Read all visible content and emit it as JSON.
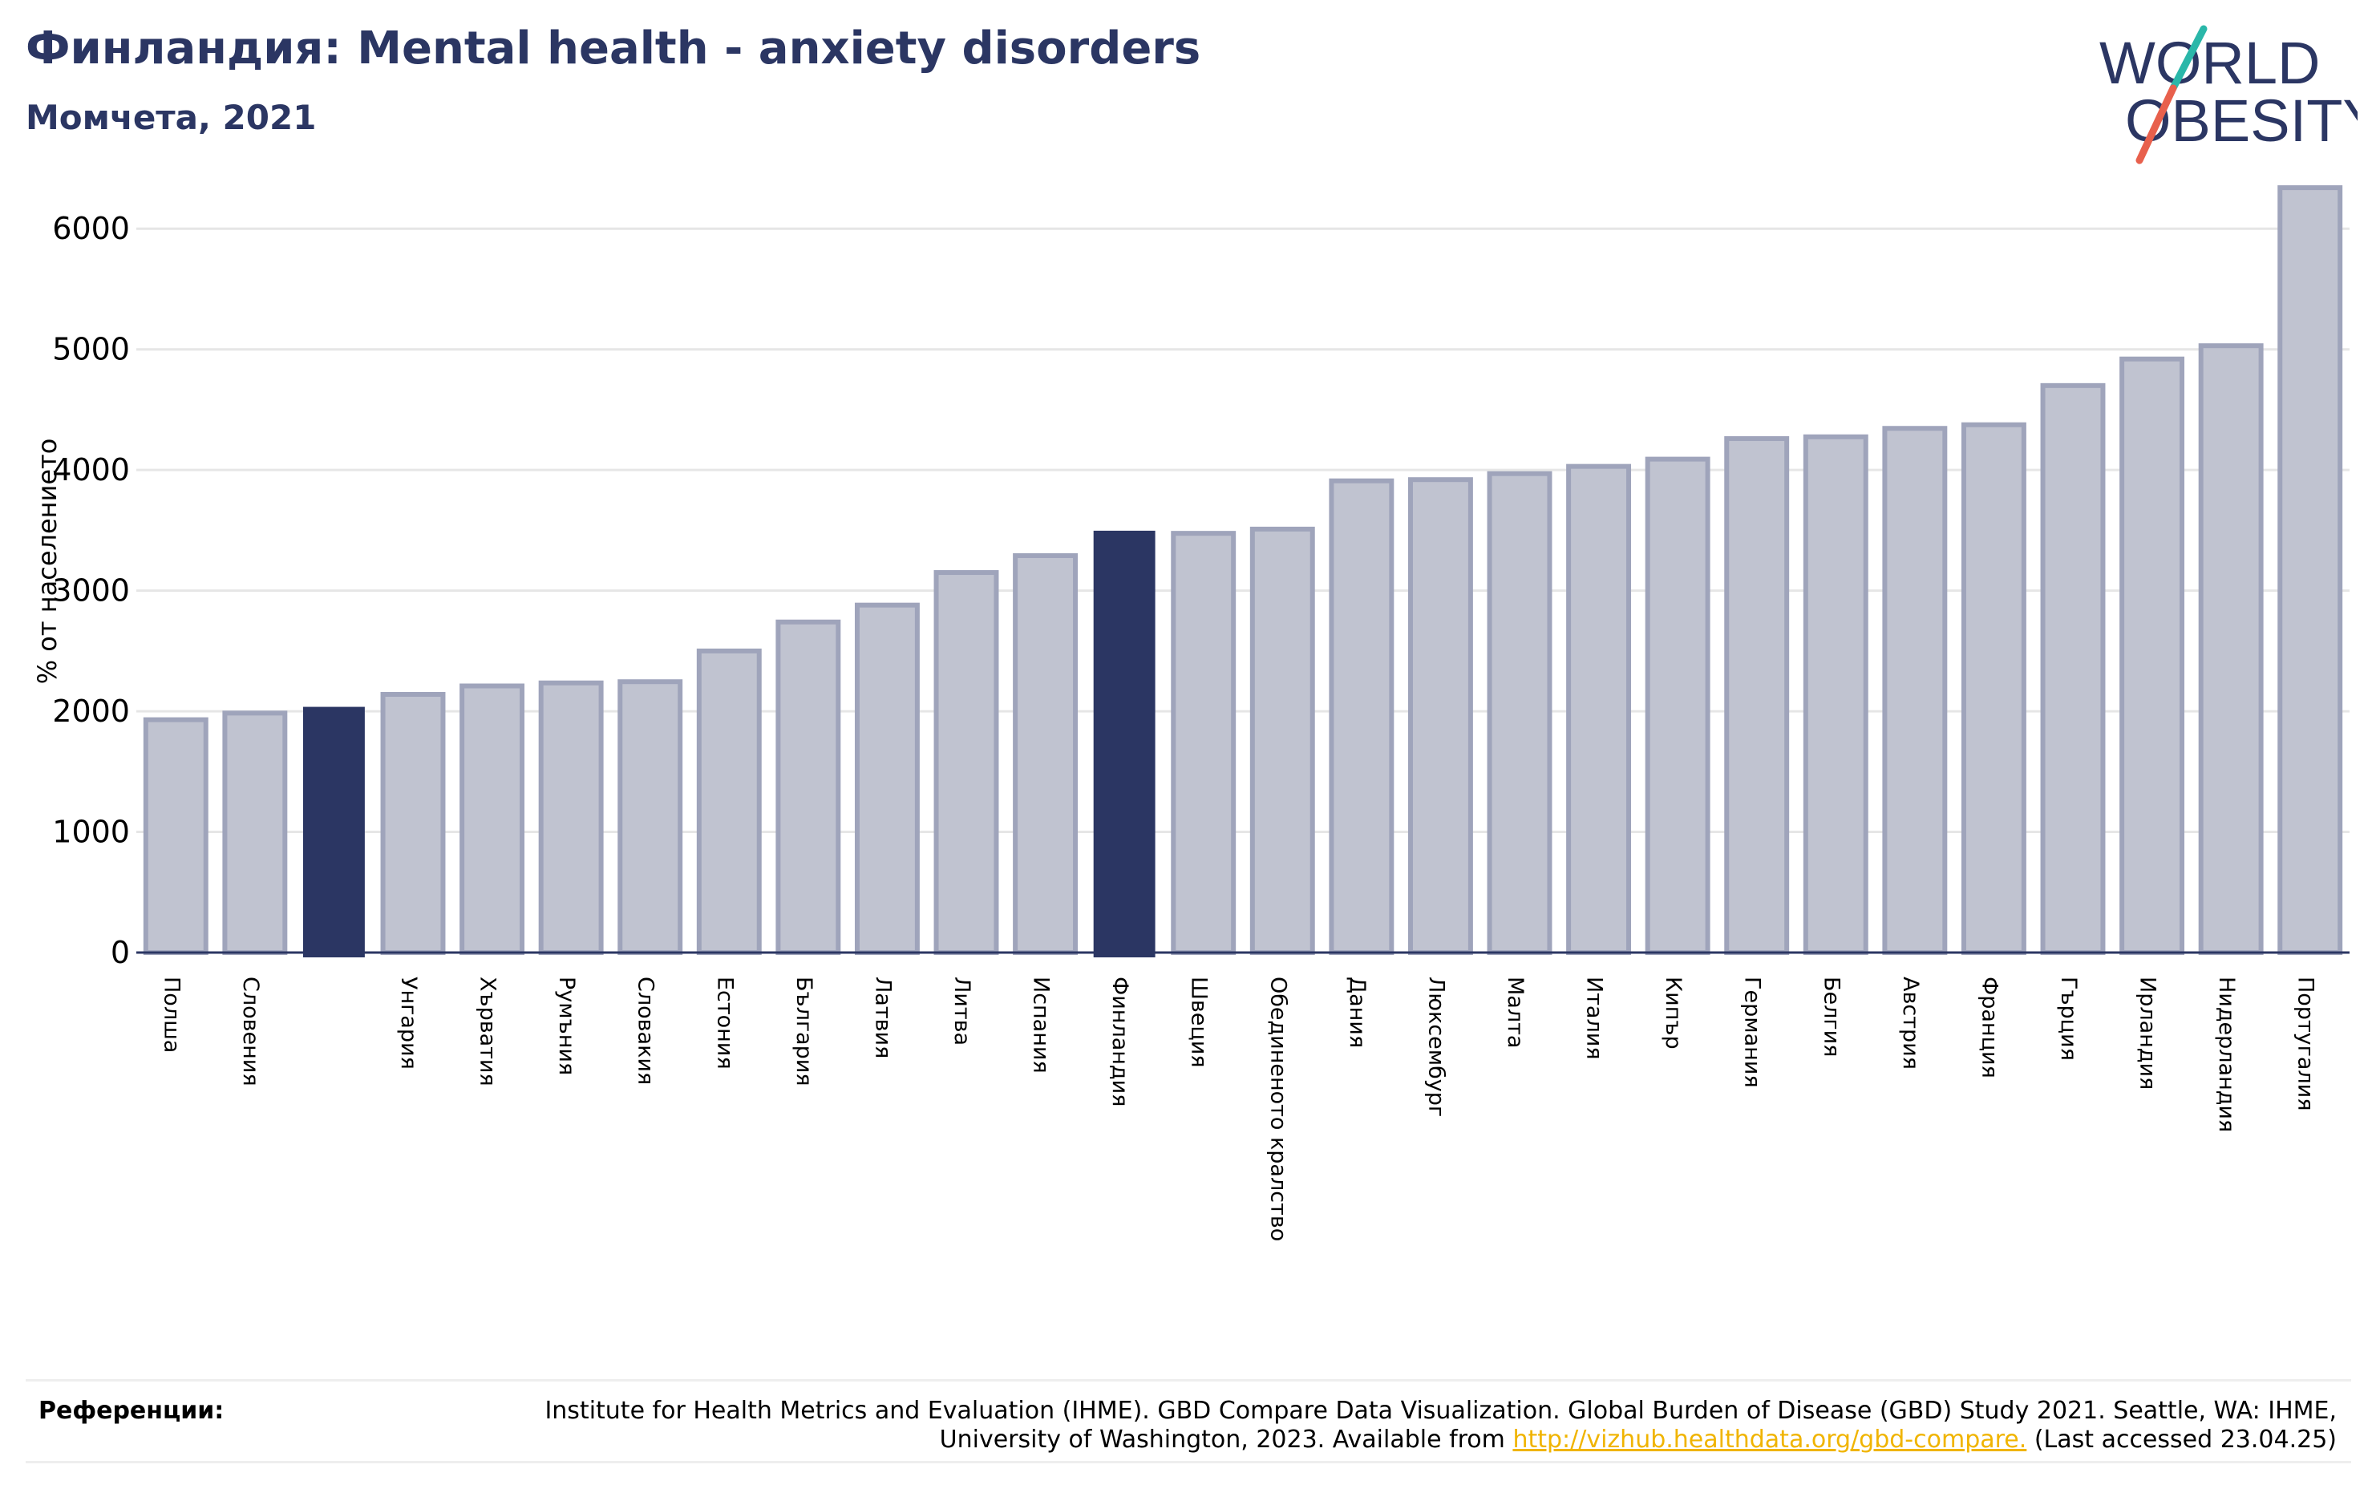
{
  "header": {
    "title": "Финландия: Mental health - anxiety disorders",
    "subtitle": "Момчета, 2021"
  },
  "logo": {
    "line1": "WORLD",
    "line2": "OBESITY",
    "text_color": "#2b3663",
    "slash_colors": [
      "#2ab7a9",
      "#e8604c"
    ]
  },
  "colors": {
    "bar": "#c0c3d0",
    "bar_border": "#9fa4bb",
    "highlight": "#2b3663",
    "grid": "#e6e6e6",
    "axis": "#2b3663"
  },
  "chart_data": {
    "type": "bar",
    "title": "Финландия: Mental health - anxiety disorders",
    "subtitle": "Момчета, 2021",
    "ylabel": "% от населението",
    "xlabel": "",
    "ylim": [
      0,
      6500
    ],
    "yticks": [
      0,
      1000,
      2000,
      3000,
      4000,
      5000,
      6000
    ],
    "grid": true,
    "categories": [
      "Полша",
      "Словения",
      "",
      "Унгария",
      "Хърватия",
      "Румъния",
      "Словакия",
      "Естония",
      "България",
      "Латвия",
      "Литва",
      "Испания",
      "Финландия",
      "Швеция",
      "Обединеното кралство",
      "Дания",
      "Люксембург",
      "Малта",
      "Италия",
      "Кипър",
      "Германия",
      "Белгия",
      "Австрия",
      "Франция",
      "Гърция",
      "Ирландия",
      "Нидерландия",
      "Португалия"
    ],
    "values": [
      1930,
      1985,
      2030,
      2140,
      2210,
      2235,
      2245,
      2500,
      2740,
      2880,
      3150,
      3290,
      3490,
      3475,
      3510,
      3910,
      3920,
      3970,
      4030,
      4090,
      4260,
      4275,
      4345,
      4375,
      4700,
      4920,
      5030,
      6340
    ],
    "highlighted": [
      2,
      12
    ]
  },
  "footer": {
    "label": "Референции:",
    "text_before": "Institute for Health Metrics and Evaluation (IHME). GBD Compare Data Visualization. Global Burden of Disease (GBD) Study 2021. Seattle, WA: IHME, University of Washington, 2023. Available from ",
    "link_text": "http://vizhub.healthdata.org/gbd-compare.",
    "text_after": " (Last accessed 23.04.25)"
  }
}
